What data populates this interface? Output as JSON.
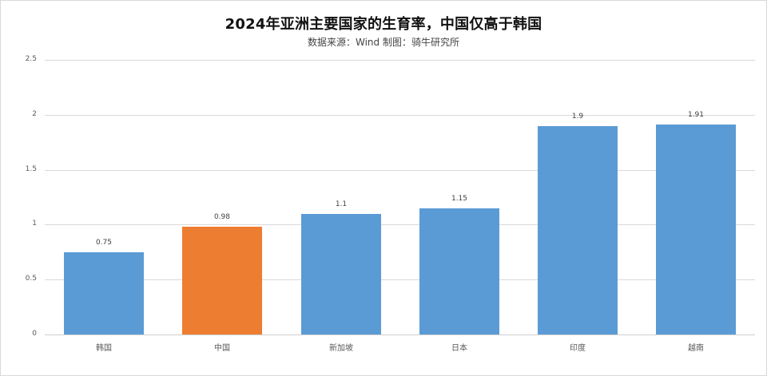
{
  "header": {
    "title": "2024年亚洲主要国家的生育率，中国仅高于韩国",
    "subtitle": "数据来源：Wind   制图：骑牛研究所"
  },
  "colors": {
    "default_bar": "#5b9bd5",
    "highlight_bar": "#ed7d31",
    "grid": "#d9d9d9"
  },
  "chart_data": {
    "type": "bar",
    "title": "2024年亚洲主要国家的生育率，中国仅高于韩国",
    "subtitle": "数据来源：Wind   制图：骑牛研究所",
    "xlabel": "",
    "ylabel": "",
    "categories": [
      "韩国",
      "中国",
      "新加坡",
      "日本",
      "印度",
      "越南"
    ],
    "values": [
      0.75,
      0.98,
      1.1,
      1.15,
      1.9,
      1.91
    ],
    "value_labels": [
      "0.75",
      "0.98",
      "1.1",
      "1.15",
      "1.9",
      "1.91"
    ],
    "highlight_index": 1,
    "ylim": [
      0,
      2.5
    ],
    "yticks": [
      "0",
      "0.5",
      "1",
      "1.5",
      "2",
      "2.5"
    ],
    "ytick_values": [
      0,
      0.5,
      1,
      1.5,
      2,
      2.5
    ],
    "grid": true,
    "legend": null
  }
}
